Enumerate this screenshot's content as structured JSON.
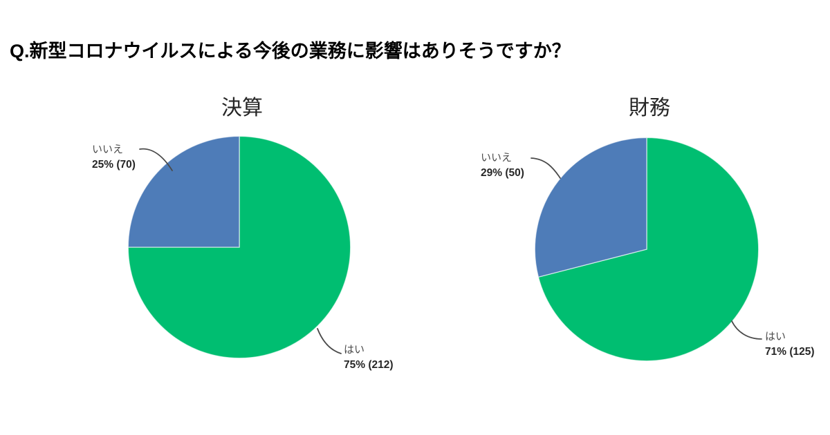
{
  "page": {
    "title": "Q.新型コロナウイルスによる今後の業務に影響はありそうですか？",
    "background": "#ffffff"
  },
  "colors": {
    "yes_green": "#00be71",
    "no_blue": "#4e7cb8",
    "leader_line": "#4a4a4a",
    "title_text": "#000000",
    "label_text": "#4a4a4a",
    "value_text": "#262626"
  },
  "chart_data": [
    {
      "type": "pie",
      "title": "決算",
      "start_angle_deg": 0,
      "direction": "clockwise",
      "legend_position": "none",
      "slices": [
        {
          "key": "yes",
          "label": "はい",
          "percent": 75,
          "count": 212,
          "value_text": "75% (212)",
          "color": "#00be71"
        },
        {
          "key": "no",
          "label": "いいえ",
          "percent": 25,
          "count": 70,
          "value_text": "25% (70)",
          "color": "#4e7cb8"
        }
      ]
    },
    {
      "type": "pie",
      "title": "財務",
      "start_angle_deg": 0,
      "direction": "clockwise",
      "legend_position": "none",
      "slices": [
        {
          "key": "yes",
          "label": "はい",
          "percent": 71,
          "count": 125,
          "value_text": "71% (125)",
          "color": "#00be71"
        },
        {
          "key": "no",
          "label": "いいえ",
          "percent": 29,
          "count": 50,
          "value_text": "29% (50)",
          "color": "#4e7cb8"
        }
      ]
    }
  ]
}
